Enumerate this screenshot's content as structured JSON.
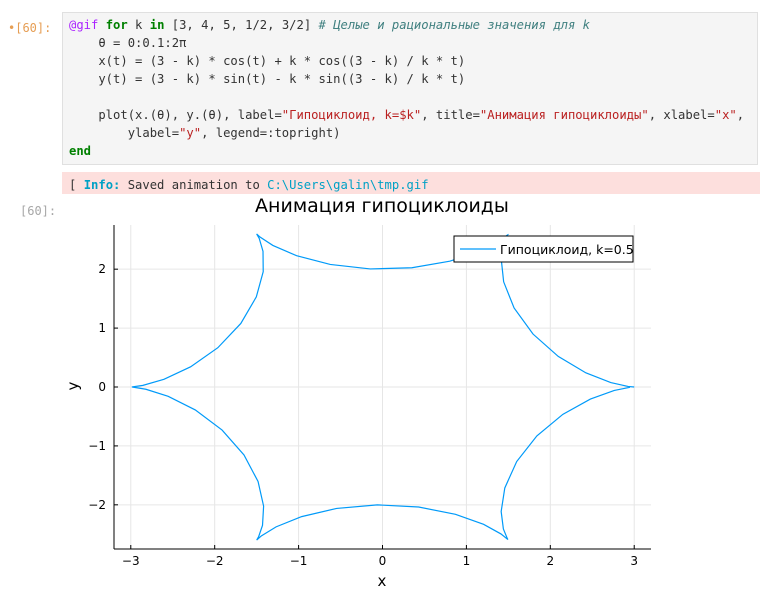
{
  "input_prompt": "•[60]:",
  "output_prompt": "[60]:",
  "code": {
    "line1": {
      "macro": "@gif",
      "kw_for": "for",
      "var": " k ",
      "kw_in": "in",
      "values": " [3, 4, 5, 1/2, 3/2] ",
      "comment": "# Целые и рациональные значения для k"
    },
    "line2": "    θ = 0:0.1:2π",
    "line3": "    x(t) = (3 - k) * cos(t) + k * cos((3 - k) / k * t)",
    "line4": "    y(t) = (3 - k) * sin(t) - k * sin((3 - k) / k * t)",
    "line6a": "    plot(x.(θ), y.(θ), label=",
    "line6str1": "\"Гипоциклоид, k=$k\"",
    "line6b": ", title=",
    "line6str2": "\"Анимация гипоциклоиды\"",
    "line6c": ", xlabel=",
    "line6str3": "\"x\"",
    "line6d": ",",
    "line7a": "        ylabel=",
    "line7str": "\"y\"",
    "line7b": ", legend=:topright)",
    "line8": "end"
  },
  "stderr": {
    "prefix": "[ ",
    "info_label": "Info:",
    "message": " Saved animation to ",
    "path": "C:\\Users\\galin\\tmp.gif"
  },
  "chart_data": {
    "type": "line",
    "title": "Анимация гипоциклоиды",
    "xlabel": "x",
    "ylabel": "y",
    "xlim": [
      -3.2,
      3.2
    ],
    "ylim": [
      -2.75,
      2.75
    ],
    "xticks": [
      -3,
      -2,
      -1,
      0,
      1,
      2,
      3
    ],
    "yticks": [
      -2,
      -1,
      0,
      1,
      2
    ],
    "xtick_labels": [
      "−3",
      "−2",
      "−1",
      "0",
      "1",
      "2",
      "3"
    ],
    "ytick_labels": [
      "−2",
      "−1",
      "0",
      "1",
      "2"
    ],
    "grid": true,
    "legend_position": "top-right",
    "series": [
      {
        "name": "Гипоциклоид, k=0.5",
        "color": "#009af9",
        "equation": {
          "k": 0.5,
          "t_start": 0,
          "t_step": 0.1,
          "t_end": 6.283185307
        }
      }
    ]
  }
}
